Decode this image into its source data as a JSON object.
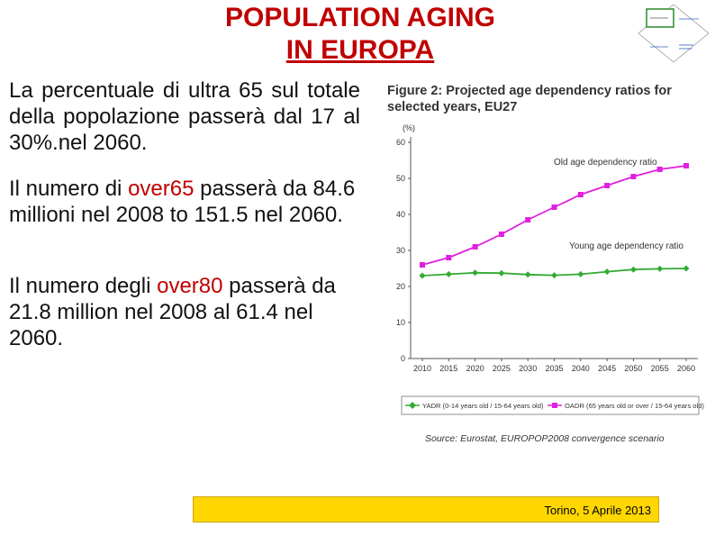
{
  "slide": {
    "title_line1": "POPULATION AGING",
    "title_line2": "IN EUROPA",
    "para1": "La percentuale di ultra 65 sul totale della popolazione passerà dal 17 al 30%.nel 2060.",
    "para2_pre": "Il numero di ",
    "para2_highlight": "over65",
    "para2_post": " passerà da 84.6 millioni nel 2008 to 151.5 nel 2060.",
    "para3_pre": "Il numero degli ",
    "para3_highlight": "over80",
    "para3_post": " passerà da 21.8 million nel 2008 al 61.4 nel 2060.",
    "footer": "Torino, 5 Aprile 2013",
    "colors": {
      "title": "#c00000",
      "highlight": "#c00000",
      "footer_bg": "#ffd700"
    }
  },
  "chart_data": {
    "type": "line",
    "title": "Figure 2: Projected age dependency ratios for selected years, EU27",
    "ylabel": "(%)",
    "ylim": [
      0,
      60
    ],
    "yticks": [
      0,
      10,
      20,
      30,
      40,
      50,
      60
    ],
    "x": [
      "2010",
      "2015",
      "2020",
      "2025",
      "2030",
      "2035",
      "2040",
      "2045",
      "2050",
      "2055",
      "2060"
    ],
    "series": [
      {
        "name": "YADR (0-14 years old / 15-64 years old)",
        "label": "Young age dependency ratio",
        "color": "#33aa33",
        "marker": "diamond",
        "values": [
          23,
          23.4,
          23.8,
          23.7,
          23.3,
          23.1,
          23.4,
          24.1,
          24.7,
          24.9,
          25
        ]
      },
      {
        "name": "OADR (65 years old or over / 15-64 years old)",
        "label": "Old age dependency ratio",
        "color": "#e020e0",
        "marker": "square",
        "values": [
          26,
          28,
          31,
          34.5,
          38.5,
          42,
          45.5,
          48,
          50.5,
          52.5,
          53.5
        ]
      }
    ],
    "legend": "bottom",
    "source": "Source: Eurostat, EUROPOP2008 convergence scenario"
  }
}
